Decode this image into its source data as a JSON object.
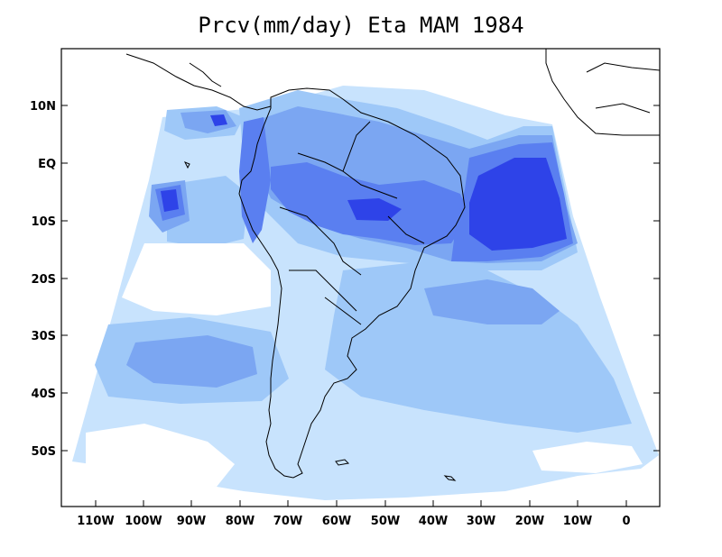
{
  "title": "Prcv(mm/day) Eta MAM 1984",
  "colors": {
    "very_light": "#c8e3fd",
    "light": "#9ec8f8",
    "medium": "#7ba6f2",
    "strong": "#5a7ff0",
    "intense": "#2e43e8",
    "coast": "#000000",
    "frame": "#000000"
  },
  "axes": {
    "x_ticks": [
      "110W",
      "100W",
      "90W",
      "80W",
      "70W",
      "60W",
      "50W",
      "40W",
      "30W",
      "20W",
      "10W",
      "0"
    ],
    "y_ticks": [
      "10N",
      "EQ",
      "10S",
      "20S",
      "30S",
      "40S",
      "50S"
    ]
  }
}
